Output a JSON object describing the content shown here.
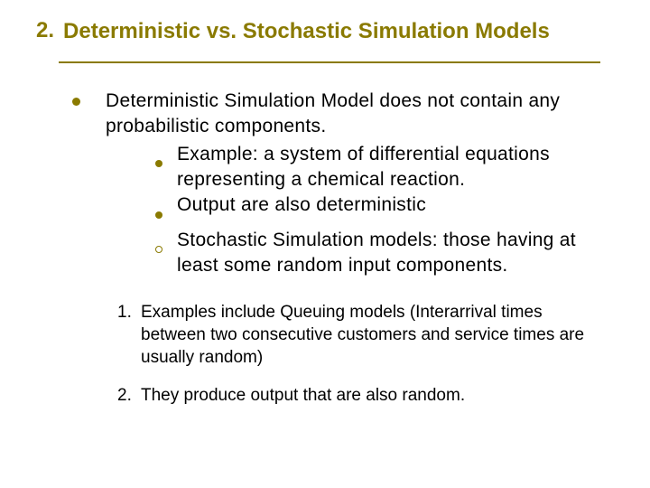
{
  "colors": {
    "accent": "#8a7a00",
    "text": "#000000",
    "background": "#ffffff"
  },
  "heading": {
    "number": "2.",
    "title": "Deterministic vs. Stochastic Simulation Models"
  },
  "body": {
    "lead": "Deterministic Simulation Model does not contain any probabilistic components.",
    "sub_bullets": [
      {
        "style": "filled",
        "text": "Example: a system of differential equations representing a chemical reaction."
      },
      {
        "style": "filled",
        "text": "Output are also deterministic"
      },
      {
        "style": "hollow",
        "text": " Stochastic Simulation models: those having at least some random input components."
      }
    ],
    "numbered": [
      {
        "n": "1.",
        "text": "Examples include Queuing models (Interarrival times between two consecutive customers and service times are usually random)"
      },
      {
        "n": "2.",
        "text": "They produce output that are also random."
      }
    ]
  },
  "typography": {
    "heading_fontsize": 24,
    "body_fontsize": 21,
    "numbered_fontsize": 19
  }
}
